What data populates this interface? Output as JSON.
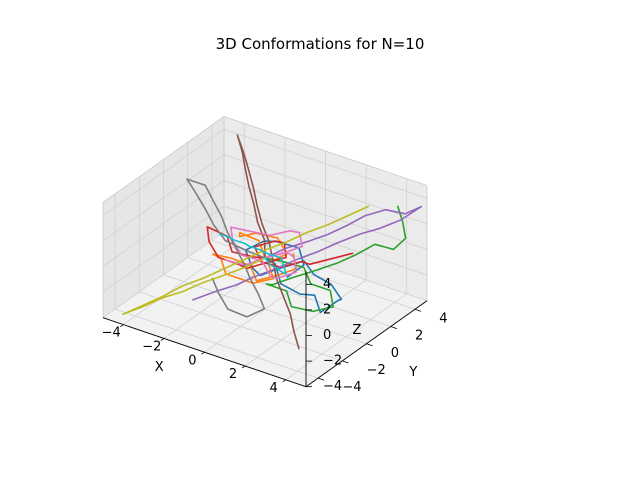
{
  "chart_data": {
    "type": "line",
    "title": "3D Conformations for N=10",
    "xlabel": "X",
    "ylabel": "Y",
    "zlabel": "Z",
    "xlim": [
      -5,
      5
    ],
    "ylim": [
      -5,
      5
    ],
    "zlim": [
      -4,
      5
    ],
    "xticks": [
      -4,
      -2,
      0,
      2,
      4
    ],
    "yticks": [
      -4,
      -2,
      0,
      2,
      4
    ],
    "zticks": [
      -4,
      -2,
      0,
      2,
      4
    ],
    "grid": true,
    "legend": "none",
    "series": [
      {
        "color": "#1f77b4",
        "points": [
          [
            0,
            0,
            0
          ],
          [
            0.8,
            -0.5,
            0.3
          ],
          [
            1.5,
            -1.2,
            -0.4
          ],
          [
            2.2,
            -0.8,
            -1.1
          ],
          [
            3.1,
            -1.1,
            -0.5
          ],
          [
            3.8,
            -1.8,
            -1.0
          ],
          [
            4.3,
            -1.2,
            -0.2
          ],
          [
            4.0,
            -0.4,
            -0.8
          ],
          [
            3.2,
            0.1,
            -0.4
          ],
          [
            2.6,
            -0.3,
            0.3
          ],
          [
            1.8,
            0.2,
            0.6
          ],
          [
            1.0,
            -0.6,
            0.1
          ],
          [
            0.3,
            -0.9,
            -0.6
          ],
          [
            -0.5,
            -0.2,
            -0.9
          ],
          [
            -1.2,
            0.4,
            -0.3
          ],
          [
            -0.7,
            1.1,
            0.2
          ],
          [
            0.1,
            0.8,
            0.8
          ],
          [
            0.9,
            1.3,
            0.4
          ],
          [
            1.5,
            0.7,
            -0.2
          ],
          [
            1.1,
            0.0,
            -0.9
          ]
        ]
      },
      {
        "color": "#ff7f0e",
        "points": [
          [
            0,
            0,
            0
          ],
          [
            -0.6,
            0.5,
            0.7
          ],
          [
            -1.3,
            0.1,
            1.2
          ],
          [
            -0.9,
            -0.6,
            1.6
          ],
          [
            -0.2,
            -0.4,
            2.1
          ],
          [
            0.5,
            0.2,
            1.7
          ],
          [
            1.2,
            -0.2,
            1.1
          ],
          [
            0.7,
            -0.9,
            0.6
          ],
          [
            1.3,
            -1.5,
            0.1
          ],
          [
            0.6,
            -2.0,
            -0.3
          ],
          [
            -0.1,
            -1.5,
            -0.8
          ],
          [
            -0.8,
            -1.9,
            -0.4
          ],
          [
            -1.4,
            -1.3,
            0.1
          ],
          [
            -2.1,
            -0.8,
            -0.3
          ],
          [
            -1.6,
            -0.1,
            -0.8
          ],
          [
            -0.9,
            0.3,
            -1.3
          ],
          [
            -0.3,
            -0.2,
            -1.8
          ],
          [
            0.4,
            0.4,
            -1.4
          ],
          [
            1.0,
            0.9,
            -0.9
          ],
          [
            0.5,
            1.5,
            -0.4
          ]
        ]
      },
      {
        "color": "#2ca02c",
        "points": [
          [
            0,
            0,
            0
          ],
          [
            0.5,
            0.7,
            -0.5
          ],
          [
            1.2,
            1.2,
            -0.9
          ],
          [
            1.9,
            0.6,
            -1.4
          ],
          [
            2.5,
            1.2,
            -2.0
          ],
          [
            3.0,
            0.6,
            -2.6
          ],
          [
            2.3,
            0.1,
            -3.0
          ],
          [
            1.6,
            -0.5,
            -2.6
          ],
          [
            1.0,
            0.1,
            -2.1
          ],
          [
            0.3,
            -0.4,
            -1.6
          ],
          [
            0.9,
            -0.9,
            -1.0
          ],
          [
            1.6,
            -0.4,
            -0.4
          ],
          [
            2.3,
            0.2,
            0.1
          ],
          [
            3.0,
            0.9,
            0.6
          ],
          [
            3.6,
            1.5,
            1.2
          ],
          [
            4.1,
            2.2,
            1.8
          ],
          [
            4.6,
            2.9,
            1.2
          ],
          [
            4.9,
            3.4,
            1.9
          ],
          [
            4.4,
            4.0,
            2.5
          ],
          [
            3.8,
            4.6,
            3.0
          ]
        ]
      },
      {
        "color": "#d62728",
        "points": [
          [
            0,
            0,
            0
          ],
          [
            -0.7,
            0.3,
            -0.5
          ],
          [
            -1.5,
            -0.2,
            -0.2
          ],
          [
            -2.1,
            0.4,
            0.3
          ],
          [
            -2.9,
            0.1,
            0.8
          ],
          [
            -2.4,
            -0.6,
            0.4
          ],
          [
            -1.7,
            -1.0,
            -0.2
          ],
          [
            -1.0,
            -0.5,
            -0.7
          ],
          [
            -0.3,
            -1.0,
            -0.3
          ],
          [
            0.4,
            -0.5,
            0.2
          ],
          [
            1.1,
            -0.1,
            0.7
          ],
          [
            0.6,
            0.6,
            1.1
          ],
          [
            -0.1,
            1.0,
            0.6
          ],
          [
            -0.8,
            0.5,
            0.1
          ],
          [
            -0.2,
            0.0,
            -0.4
          ],
          [
            0.5,
            0.5,
            -0.8
          ],
          [
            1.2,
            1.0,
            -0.3
          ],
          [
            1.9,
            0.5,
            0.2
          ],
          [
            2.6,
            1.1,
            0.6
          ],
          [
            3.3,
            1.7,
            1.0
          ]
        ]
      },
      {
        "color": "#9467bd",
        "points": [
          [
            0,
            0,
            0
          ],
          [
            0.6,
            0.7,
            0.6
          ],
          [
            1.3,
            1.3,
            1.1
          ],
          [
            2.0,
            1.8,
            1.7
          ],
          [
            2.6,
            2.5,
            2.3
          ],
          [
            3.1,
            3.1,
            2.9
          ],
          [
            3.8,
            3.6,
            3.4
          ],
          [
            4.4,
            4.2,
            3.0
          ],
          [
            4.9,
            4.7,
            3.5
          ],
          [
            4.3,
            4.0,
            2.6
          ],
          [
            3.7,
            3.3,
            2.1
          ],
          [
            3.0,
            2.8,
            1.6
          ],
          [
            2.3,
            2.1,
            1.0
          ],
          [
            1.7,
            1.5,
            0.4
          ],
          [
            1.0,
            0.9,
            -0.2
          ],
          [
            0.4,
            0.3,
            -0.8
          ],
          [
            -0.3,
            -0.3,
            -1.4
          ],
          [
            -0.9,
            -0.9,
            -2.0
          ],
          [
            -1.6,
            -1.5,
            -2.5
          ],
          [
            -2.3,
            -2.1,
            -3.1
          ]
        ]
      },
      {
        "color": "#8c564b",
        "points": [
          [
            0,
            0,
            0
          ],
          [
            -0.5,
            0.8,
            0.6
          ],
          [
            -1.2,
            1.4,
            1.2
          ],
          [
            -1.8,
            2.1,
            1.8
          ],
          [
            -2.4,
            2.7,
            2.5
          ],
          [
            -3.0,
            3.4,
            3.1
          ],
          [
            -3.5,
            4.0,
            3.7
          ],
          [
            -4.1,
            4.6,
            4.3
          ],
          [
            -3.5,
            4.1,
            3.6
          ],
          [
            -2.9,
            3.5,
            3.0
          ],
          [
            -2.3,
            2.9,
            2.3
          ],
          [
            -1.7,
            2.2,
            1.7
          ],
          [
            -1.1,
            1.6,
            1.0
          ],
          [
            -0.4,
            1.0,
            0.4
          ],
          [
            0.2,
            0.3,
            -0.2
          ],
          [
            0.8,
            -0.4,
            -0.9
          ],
          [
            1.5,
            -1.0,
            -1.5
          ],
          [
            2.2,
            -1.6,
            -2.1
          ],
          [
            2.8,
            -2.3,
            -2.7
          ],
          [
            3.4,
            -2.9,
            -3.3
          ]
        ]
      },
      {
        "color": "#e377c2",
        "points": [
          [
            0,
            0,
            0
          ],
          [
            0.7,
            0.4,
            0.5
          ],
          [
            1.3,
            0.9,
            1.0
          ],
          [
            0.8,
            1.5,
            1.4
          ],
          [
            0.1,
            1.9,
            0.9
          ],
          [
            -0.6,
            1.4,
            0.5
          ],
          [
            -1.2,
            0.8,
            0.9
          ],
          [
            -1.8,
            0.2,
            1.3
          ],
          [
            -1.3,
            -0.5,
            1.0
          ],
          [
            -0.6,
            -0.9,
            0.5
          ],
          [
            0.1,
            -0.4,
            0.1
          ],
          [
            0.8,
            -0.9,
            -0.4
          ],
          [
            1.4,
            -1.4,
            0.1
          ],
          [
            2.0,
            -0.8,
            0.5
          ],
          [
            1.5,
            -0.1,
            0.9
          ],
          [
            0.9,
            0.5,
            0.5
          ],
          [
            0.3,
            1.0,
            -0.1
          ],
          [
            -0.4,
            0.5,
            -0.6
          ],
          [
            -1.0,
            0.0,
            -1.1
          ],
          [
            -1.6,
            -0.6,
            -0.6
          ]
        ]
      },
      {
        "color": "#7f7f7f",
        "points": [
          [
            0,
            0,
            0
          ],
          [
            -0.8,
            -0.3,
            0.4
          ],
          [
            -1.6,
            -0.6,
            0.9
          ],
          [
            -2.4,
            -0.2,
            1.4
          ],
          [
            -3.1,
            0.3,
            1.9
          ],
          [
            -3.8,
            0.7,
            2.5
          ],
          [
            -4.5,
            1.1,
            3.0
          ],
          [
            -3.9,
            1.6,
            2.5
          ],
          [
            -3.2,
            1.1,
            2.0
          ],
          [
            -2.5,
            0.6,
            1.5
          ],
          [
            -1.9,
            0.1,
            0.9
          ],
          [
            -1.2,
            -0.4,
            0.4
          ],
          [
            -0.5,
            -0.9,
            -0.1
          ],
          [
            0.1,
            -1.4,
            -0.6
          ],
          [
            0.8,
            -1.9,
            -1.1
          ],
          [
            1.4,
            -2.4,
            -1.6
          ],
          [
            0.9,
            -3.0,
            -2.1
          ],
          [
            0.2,
            -3.4,
            -1.6
          ],
          [
            -0.5,
            -3.0,
            -1.0
          ],
          [
            -1.1,
            -2.5,
            -0.5
          ]
        ]
      },
      {
        "color": "#bcbd22",
        "points": [
          [
            0,
            0,
            0
          ],
          [
            -0.6,
            -0.7,
            -0.6
          ],
          [
            -1.3,
            -1.3,
            -1.2
          ],
          [
            -2.0,
            -1.8,
            -1.8
          ],
          [
            -2.6,
            -2.4,
            -2.4
          ],
          [
            -3.3,
            -3.0,
            -2.9
          ],
          [
            -3.9,
            -3.6,
            -3.5
          ],
          [
            -4.5,
            -4.2,
            -4.0
          ],
          [
            -3.9,
            -3.6,
            -3.4
          ],
          [
            -3.3,
            -3.0,
            -2.8
          ],
          [
            -2.7,
            -2.3,
            -2.1
          ],
          [
            -2.0,
            -1.7,
            -1.5
          ],
          [
            -1.4,
            -1.0,
            -0.9
          ],
          [
            -0.8,
            -0.4,
            -0.3
          ],
          [
            -0.2,
            0.3,
            0.3
          ],
          [
            0.5,
            0.9,
            0.9
          ],
          [
            1.1,
            1.6,
            1.5
          ],
          [
            1.8,
            2.2,
            2.1
          ],
          [
            2.4,
            2.8,
            2.7
          ],
          [
            3.0,
            3.5,
            3.3
          ]
        ]
      },
      {
        "color": "#17becf",
        "points": [
          [
            0,
            0,
            0
          ],
          [
            0.6,
            -0.8,
            0.6
          ],
          [
            1.2,
            -1.6,
            1.2
          ],
          [
            1.9,
            -2.3,
            1.8
          ],
          [
            2.5,
            -3.0,
            2.4
          ],
          [
            3.1,
            -3.7,
            3.0
          ],
          [
            3.6,
            -4.3,
            3.6
          ],
          [
            3.0,
            -3.7,
            4.1
          ],
          [
            2.4,
            -3.1,
            3.5
          ],
          [
            1.8,
            -2.5,
            2.9
          ],
          [
            1.1,
            -1.9,
            2.3
          ],
          [
            0.5,
            -1.2,
            1.7
          ],
          [
            -0.1,
            -0.6,
            1.1
          ],
          [
            -0.8,
            0.0,
            0.5
          ],
          [
            -1.4,
            0.7,
            -0.1
          ],
          [
            -2.0,
            1.3,
            -0.7
          ],
          [
            -2.7,
            1.9,
            -1.3
          ],
          [
            -3.3,
            2.6,
            -1.9
          ],
          [
            -3.9,
            3.2,
            -2.5
          ],
          [
            -4.5,
            3.8,
            -3.1
          ]
        ]
      }
    ]
  }
}
